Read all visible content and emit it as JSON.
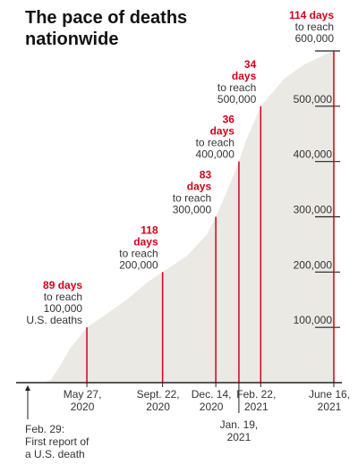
{
  "title": "The pace of deaths nationwide",
  "colors": {
    "accent": "#d0021b",
    "area": "#ebe9e3",
    "text": "#333333",
    "axis": "#222222"
  },
  "chart_data": {
    "type": "area",
    "title": "The pace of deaths nationwide",
    "x_range": [
      "2020-02-29",
      "2021-06-16"
    ],
    "ylim": [
      0,
      600000
    ],
    "y_ticks": [
      {
        "value": 100000,
        "label": "100,000"
      },
      {
        "value": 200000,
        "label": "200,000"
      },
      {
        "value": 300000,
        "label": "300,000"
      },
      {
        "value": 400000,
        "label": "400,000"
      },
      {
        "value": 500000,
        "label": "500,000"
      },
      {
        "value": 600000,
        "label": "600,000"
      }
    ],
    "series": [
      {
        "values": [
          [
            "2020-02-29",
            0
          ],
          [
            "2020-03-20",
            200
          ],
          [
            "2020-04-01",
            5000
          ],
          [
            "2020-04-15",
            30000
          ],
          [
            "2020-05-01",
            62000
          ],
          [
            "2020-05-27",
            100000
          ],
          [
            "2020-06-30",
            127000
          ],
          [
            "2020-07-31",
            153000
          ],
          [
            "2020-08-31",
            183000
          ],
          [
            "2020-09-22",
            200000
          ],
          [
            "2020-10-31",
            230000
          ],
          [
            "2020-11-30",
            268000
          ],
          [
            "2020-12-14",
            300000
          ],
          [
            "2020-12-31",
            345000
          ],
          [
            "2021-01-19",
            400000
          ],
          [
            "2021-01-31",
            440000
          ],
          [
            "2021-02-22",
            500000
          ],
          [
            "2021-03-31",
            550000
          ],
          [
            "2021-04-30",
            575000
          ],
          [
            "2021-05-31",
            592000
          ],
          [
            "2021-06-16",
            600000
          ]
        ]
      }
    ],
    "milestones": [
      {
        "date": "2020-02-29",
        "value": 0,
        "date_label": [
          "Feb. 29:",
          "First report of",
          "a U.S. death"
        ],
        "label_below": true
      },
      {
        "date": "2020-05-27",
        "value": 100000,
        "days": [
          "89 days"
        ],
        "desc": [
          "to reach",
          "100,000",
          "U.S. deaths"
        ],
        "date_label": [
          "May 27,",
          "2020"
        ]
      },
      {
        "date": "2020-09-22",
        "value": 200000,
        "days": [
          "118",
          "days"
        ],
        "desc": [
          "to reach",
          "200,000"
        ],
        "date_label": [
          "Sept. 22,",
          "2020"
        ]
      },
      {
        "date": "2020-12-14",
        "value": 300000,
        "days": [
          "83",
          "days"
        ],
        "desc": [
          "to reach",
          "300,000"
        ],
        "date_label": [
          "Dec. 14,",
          "2020"
        ]
      },
      {
        "date": "2021-01-19",
        "value": 400000,
        "days": [
          "36",
          "days"
        ],
        "desc": [
          "to reach",
          "400,000"
        ],
        "date_label": [
          "Jan. 19,",
          "2021"
        ],
        "label_below": true
      },
      {
        "date": "2021-02-22",
        "value": 500000,
        "days": [
          "34",
          "days"
        ],
        "desc": [
          "to reach",
          "500,000"
        ],
        "date_label": [
          "Feb. 22,",
          "2021"
        ]
      },
      {
        "date": "2021-06-16",
        "value": 600000,
        "days": [
          "114 days"
        ],
        "desc": [
          "to reach",
          "600,000"
        ],
        "date_label": [
          "June 16,",
          "2021"
        ]
      }
    ]
  }
}
